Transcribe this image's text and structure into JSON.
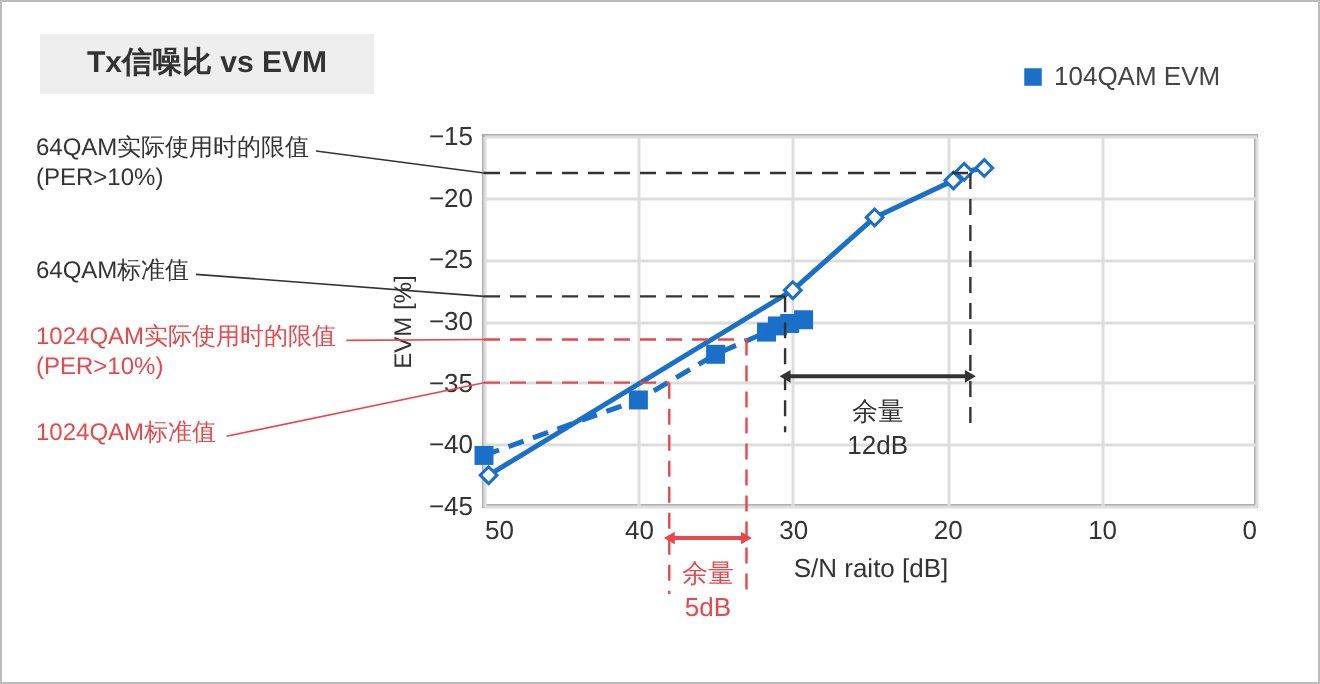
{
  "chart_data": {
    "type": "line",
    "title": "Tx信噪比 vs EVM",
    "xlabel": "S/N raito [dB]",
    "ylabel": "EVM [%]",
    "xlim": [
      50,
      0
    ],
    "xticks": [
      50,
      40,
      30,
      20,
      10,
      0
    ],
    "ylim": [
      -45,
      -15
    ],
    "yticks": [
      -45,
      -40,
      -35,
      -30,
      -25,
      -20,
      -15
    ],
    "grid": true,
    "legend": "top right",
    "series": [
      {
        "color": "#1a6fc9",
        "marker": "diamond",
        "line_style": "solid",
        "x": [
          49.7,
          30,
          24.7,
          19.6,
          18.9,
          17.6
        ],
        "values": [
          -42.5,
          -27.5,
          -21.6,
          -18.6,
          -17.9,
          -17.6
        ]
      },
      {
        "name": "104QAM EVM",
        "color": "#1a6fc9",
        "marker": "square",
        "line_style": "dashed",
        "x": [
          50,
          40,
          35,
          31.7,
          31,
          30.2,
          29.3
        ],
        "values": [
          -40.9,
          -36.4,
          -32.7,
          -30.9,
          -30.4,
          -30.2,
          -29.9
        ]
      }
    ],
    "ref_lines": [
      {
        "axis": "y",
        "value": -18,
        "label": "64QAM实际使用时的限值\n(PER>10%)",
        "color": "#333333",
        "line_style": "dashed"
      },
      {
        "axis": "y",
        "value": -28,
        "label": "64QAM标准值",
        "color": "#333333",
        "line_style": "dashed"
      },
      {
        "axis": "y",
        "value": -31.5,
        "label": "1024QAM实际使用时的限值\n(PER>10%)",
        "color": "#e8474c",
        "line_style": "dashed"
      },
      {
        "axis": "y",
        "value": -35,
        "label": "1024QAM标准值",
        "color": "#e8474c",
        "line_style": "dashed"
      },
      {
        "axis": "x",
        "value": 18.5,
        "color": "#333333",
        "line_style": "dashed"
      },
      {
        "axis": "x",
        "value": 30.5,
        "color": "#333333",
        "line_style": "dashed"
      },
      {
        "axis": "x",
        "value": 33,
        "color": "#e8474c",
        "line_style": "dashed"
      },
      {
        "axis": "x",
        "value": 38,
        "color": "#e8474c",
        "line_style": "dashed"
      }
    ],
    "annotations": [
      "余量\n12dB",
      "余量\n5dB"
    ]
  }
}
